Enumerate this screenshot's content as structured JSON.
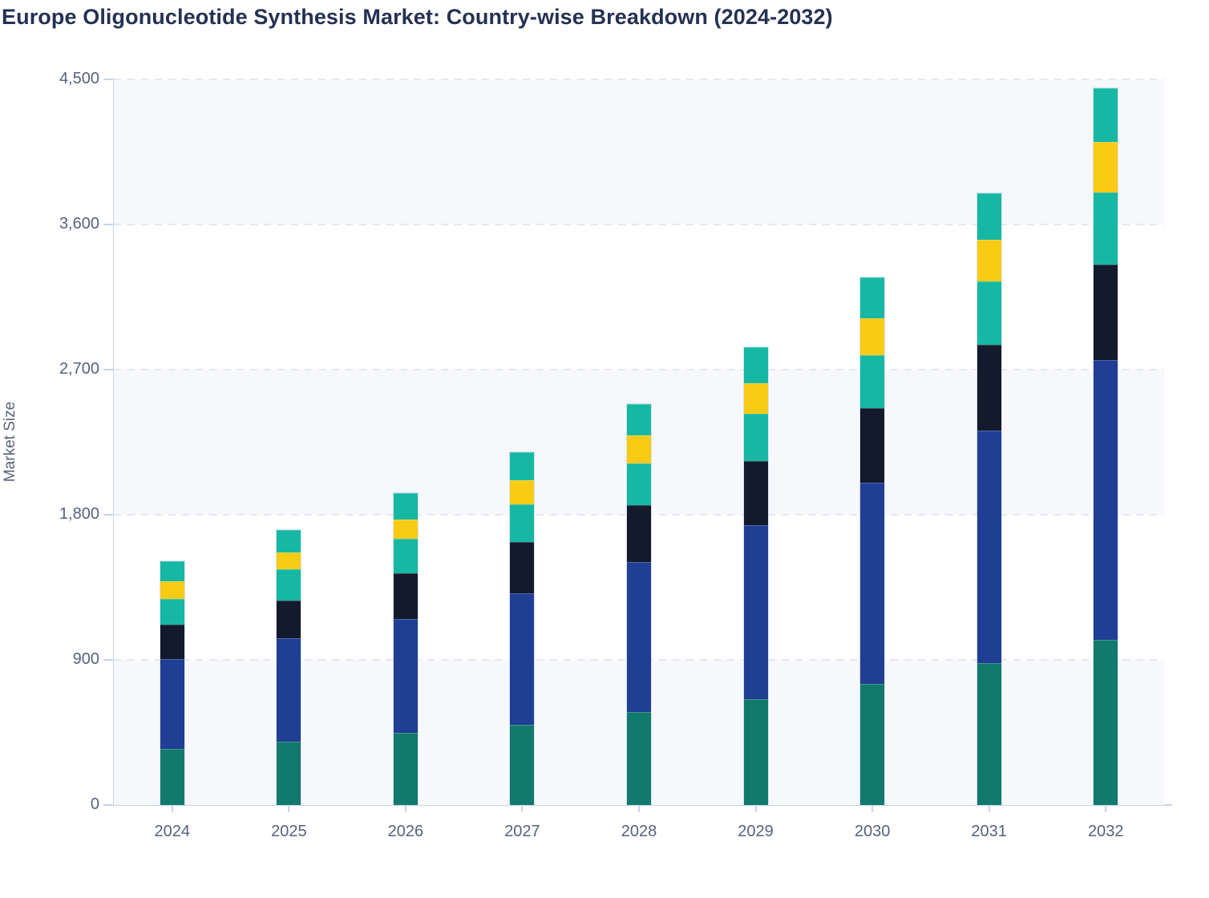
{
  "title": "Europe Oligonucleotide Synthesis Market: Country-wise Breakdown (2024-2032)",
  "y_axis_title": "Market Size",
  "style": {
    "title_color": "#243152",
    "label_color": "#57617b",
    "axis_line_color": "#c9d3ea",
    "gridline_color": "#e4e7ed",
    "band_fill_color": "#f7f8fb",
    "band_alt_color": "#ffffff"
  },
  "chart_data": {
    "type": "bar",
    "subtype": "stacked-vertical",
    "title": "Europe Oligonucleotide Synthesis Market: Country-wise Breakdown (2024-2032)",
    "xlabel": "",
    "ylabel": "Market Size",
    "categories": [
      "2024",
      "2025",
      "2026",
      "2027",
      "2028",
      "2029",
      "2030",
      "2031",
      "2032"
    ],
    "stack_order": "bottom-to-top",
    "series": [
      {
        "name": "series-1-dark-green",
        "color": "#117a6c",
        "values": [
          350,
          395,
          450,
          495,
          575,
          655,
          750,
          880,
          1025
        ]
      },
      {
        "name": "series-2-blue",
        "color": "#203e94",
        "values": [
          555,
          640,
          705,
          820,
          930,
          1080,
          1250,
          1440,
          1735
        ]
      },
      {
        "name": "series-3-dark-navy",
        "color": "#121a2b",
        "values": [
          215,
          235,
          280,
          315,
          355,
          400,
          460,
          535,
          590
        ]
      },
      {
        "name": "series-4-teal",
        "color": "#16b8a3",
        "values": [
          160,
          190,
          215,
          235,
          260,
          290,
          330,
          390,
          450
        ]
      },
      {
        "name": "series-5-yellow",
        "color": "#f8cb15",
        "values": [
          110,
          105,
          120,
          150,
          170,
          190,
          230,
          260,
          310
        ]
      },
      {
        "name": "series-6-teal-top",
        "color": "#16b8a3",
        "values": [
          120,
          140,
          165,
          175,
          195,
          225,
          250,
          290,
          335
        ]
      }
    ],
    "totals": [
      1510,
      1705,
      1935,
      2190,
      2485,
      2840,
      3270,
      3795,
      4445
    ],
    "ylim": [
      0,
      4500
    ],
    "yticks": [
      {
        "value": 0,
        "label": "0"
      },
      {
        "value": 900,
        "label": "900"
      },
      {
        "value": 1800,
        "label": "1,800"
      },
      {
        "value": 2700,
        "label": "2,700"
      },
      {
        "value": 3600,
        "label": "3,600"
      },
      {
        "value": 4500,
        "label": "4,500"
      }
    ],
    "grid": "horizontal-dashed",
    "background_bands": "alternating",
    "legend": "none"
  }
}
